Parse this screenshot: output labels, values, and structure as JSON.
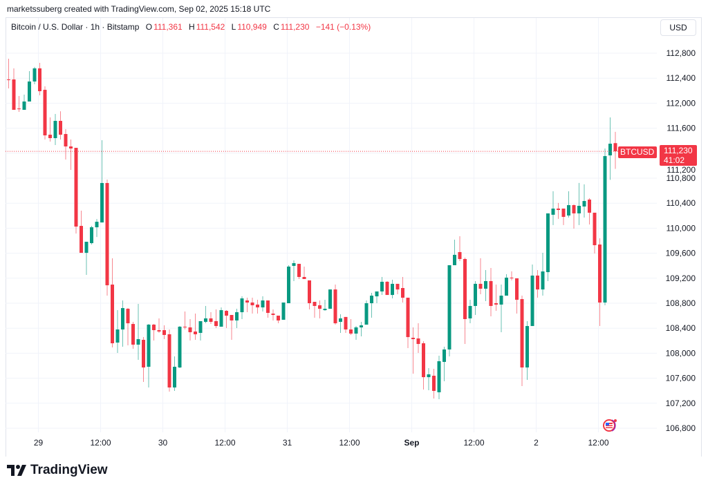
{
  "credit": "marketssuberg created with TradingView.com, Sep 02, 2025 15:18 UTC",
  "legend": {
    "symbol": "Bitcoin / U.S. Dollar · 1h · Bitstamp",
    "o_label": "O",
    "o": "111,361",
    "h_label": "H",
    "h": "111,542",
    "l_label": "L",
    "l": "110,949",
    "c_label": "C",
    "c": "111,230",
    "change": "−141 (−0.13%)"
  },
  "currency_button": "USD",
  "last_price": {
    "symbol_tag": "BTCUSD",
    "price": "111,230",
    "countdown": "41:02",
    "value": 111230
  },
  "colors": {
    "up": "#089981",
    "down": "#F23645",
    "grid": "#f0f3fa"
  },
  "icons": {
    "economic_event": "us-flag-event-icon",
    "logo": "tradingview-logo-icon"
  },
  "logo_text": "TradingView",
  "chart_data": {
    "type": "candlestick",
    "interval": "1h",
    "ylim": [
      106600,
      113000
    ],
    "y_ticks": [
      "112,800",
      "112,400",
      "112,000",
      "111,600",
      "111,200",
      "110,800",
      "110,400",
      "110,000",
      "109,600",
      "109,200",
      "108,800",
      "108,400",
      "108,000",
      "107,600",
      "107,200",
      "106,800"
    ],
    "y_tick_values": [
      112800,
      112400,
      112000,
      111600,
      111200,
      110800,
      110400,
      110000,
      109600,
      109200,
      108800,
      108400,
      108000,
      107600,
      107200,
      106800
    ],
    "x_ticks": [
      {
        "label": "29",
        "bold": false,
        "index": 6
      },
      {
        "label": "12:00",
        "bold": false,
        "index": 18
      },
      {
        "label": "30",
        "bold": false,
        "index": 30
      },
      {
        "label": "12:00",
        "bold": false,
        "index": 42
      },
      {
        "label": "31",
        "bold": false,
        "index": 54
      },
      {
        "label": "12:00",
        "bold": false,
        "index": 66
      },
      {
        "label": "Sep",
        "bold": true,
        "index": 78
      },
      {
        "label": "12:00",
        "bold": false,
        "index": 90
      },
      {
        "label": "2",
        "bold": false,
        "index": 102
      },
      {
        "label": "12:00",
        "bold": false,
        "index": 114
      }
    ],
    "ohlc": [
      [
        112380,
        112712,
        112236,
        112370
      ],
      [
        112380,
        112557,
        111894,
        111894
      ],
      [
        111915,
        112115,
        111861,
        111905
      ],
      [
        111894,
        112137,
        111894,
        112027
      ],
      [
        112027,
        112513,
        112027,
        112347
      ],
      [
        112347,
        112580,
        112303,
        112557
      ],
      [
        112557,
        112645,
        112126,
        112192
      ],
      [
        112214,
        112270,
        111419,
        111485
      ],
      [
        111496,
        111772,
        111386,
        111441
      ],
      [
        111441,
        111827,
        111331,
        111717
      ],
      [
        111717,
        111871,
        111419,
        111496
      ],
      [
        111507,
        111584,
        111099,
        111308
      ],
      [
        111308,
        111419,
        110933,
        111275
      ],
      [
        111286,
        111286,
        109915,
        110026
      ],
      [
        110037,
        110281,
        109606,
        109606
      ],
      [
        109606,
        109783,
        109253,
        109783
      ],
      [
        109761,
        110037,
        109739,
        110015
      ],
      [
        110015,
        110147,
        109860,
        110103
      ],
      [
        110092,
        111408,
        110092,
        110723
      ],
      [
        110723,
        110778,
        108921,
        109087
      ],
      [
        109098,
        109518,
        108093,
        108159
      ],
      [
        108170,
        108689,
        108005,
        108380
      ],
      [
        108380,
        108844,
        108104,
        108722
      ],
      [
        108711,
        108722,
        108126,
        108479
      ],
      [
        108468,
        108502,
        108071,
        108137
      ],
      [
        108137,
        108789,
        107894,
        108225
      ],
      [
        108214,
        108258,
        107540,
        107772
      ],
      [
        107783,
        108468,
        107452,
        108457
      ],
      [
        108457,
        108468,
        108203,
        108369
      ],
      [
        108369,
        108557,
        108325,
        108347
      ],
      [
        108369,
        108446,
        108225,
        108292
      ],
      [
        108303,
        108380,
        107386,
        107452
      ],
      [
        107452,
        107949,
        107397,
        107783
      ],
      [
        107772,
        108435,
        107761,
        108424
      ],
      [
        108424,
        108667,
        108380,
        108413
      ],
      [
        108413,
        108546,
        108203,
        108336
      ],
      [
        108347,
        108634,
        108214,
        108303
      ],
      [
        108325,
        108513,
        108203,
        108513
      ],
      [
        108502,
        108756,
        108480,
        108557
      ],
      [
        108557,
        108656,
        108469,
        108502
      ],
      [
        108513,
        108700,
        108402,
        108435
      ],
      [
        108424,
        108733,
        108424,
        108689
      ],
      [
        108678,
        108689,
        108402,
        108601
      ],
      [
        108612,
        108612,
        108214,
        108524
      ],
      [
        108524,
        108711,
        108402,
        108656
      ],
      [
        108656,
        108910,
        108546,
        108877
      ],
      [
        108844,
        108888,
        108656,
        108811
      ],
      [
        108811,
        108888,
        108634,
        108767
      ],
      [
        108778,
        108855,
        108634,
        108733
      ],
      [
        108733,
        108910,
        108667,
        108844
      ],
      [
        108844,
        108844,
        108568,
        108645
      ],
      [
        108634,
        108700,
        108524,
        108612
      ],
      [
        108601,
        108601,
        108480,
        108524
      ],
      [
        108535,
        108811,
        108535,
        108811
      ],
      [
        108800,
        109408,
        108800,
        109386
      ],
      [
        109397,
        109485,
        109154,
        109441
      ],
      [
        109430,
        109430,
        109187,
        109220
      ],
      [
        109220,
        109386,
        109187,
        109187
      ],
      [
        109165,
        109165,
        108700,
        108800
      ],
      [
        108822,
        108822,
        108568,
        108756
      ],
      [
        108767,
        108844,
        108557,
        108711
      ],
      [
        108689,
        108855,
        108678,
        108711
      ],
      [
        108711,
        109020,
        108711,
        109020
      ],
      [
        109020,
        109098,
        108457,
        108479
      ],
      [
        108502,
        108623,
        108325,
        108557
      ],
      [
        108580,
        108580,
        108325,
        108380
      ],
      [
        108380,
        108546,
        108292,
        108314
      ],
      [
        108314,
        108435,
        108215,
        108413
      ],
      [
        108413,
        108502,
        108270,
        108446
      ],
      [
        108457,
        108844,
        108457,
        108800
      ],
      [
        108800,
        108966,
        108568,
        108921
      ],
      [
        108910,
        108988,
        108800,
        108988
      ],
      [
        108988,
        109220,
        108932,
        109143
      ],
      [
        109143,
        109154,
        108932,
        108932
      ],
      [
        108932,
        109176,
        108877,
        109110
      ],
      [
        109110,
        109110,
        108943,
        109020
      ],
      [
        109043,
        109220,
        108811,
        108888
      ],
      [
        108888,
        108888,
        108082,
        108258
      ],
      [
        108247,
        108413,
        107673,
        108225
      ],
      [
        108236,
        108479,
        108005,
        108148
      ],
      [
        108159,
        108192,
        107419,
        107617
      ],
      [
        107617,
        107761,
        107408,
        107662
      ],
      [
        107640,
        107750,
        107275,
        107397
      ],
      [
        107375,
        107960,
        107264,
        107872
      ],
      [
        107861,
        108104,
        107552,
        108060
      ],
      [
        108060,
        109408,
        107949,
        109408
      ],
      [
        109408,
        109817,
        109408,
        109574
      ],
      [
        109618,
        109872,
        109474,
        109507
      ],
      [
        109507,
        109529,
        108148,
        108546
      ],
      [
        108557,
        108855,
        108479,
        108756
      ],
      [
        108756,
        109154,
        108612,
        109110
      ],
      [
        109110,
        109519,
        108943,
        109032
      ],
      [
        109032,
        109331,
        108833,
        109154
      ],
      [
        109154,
        109364,
        108590,
        108756
      ],
      [
        108800,
        109098,
        108678,
        108778
      ],
      [
        108778,
        109098,
        108336,
        108921
      ],
      [
        108921,
        109264,
        108921,
        109209
      ],
      [
        109209,
        109309,
        109165,
        109198
      ],
      [
        109198,
        109198,
        108634,
        108855
      ],
      [
        108866,
        108921,
        107474,
        107772
      ],
      [
        107772,
        108513,
        107573,
        108435
      ],
      [
        108435,
        109419,
        108435,
        109242
      ],
      [
        109242,
        109331,
        108888,
        109020
      ],
      [
        109020,
        109607,
        108921,
        109308
      ],
      [
        109297,
        110237,
        109154,
        110237
      ],
      [
        110215,
        110591,
        110050,
        110314
      ],
      [
        110314,
        110403,
        110149,
        110292
      ],
      [
        110314,
        110314,
        110050,
        110181
      ],
      [
        110203,
        110591,
        110170,
        110369
      ],
      [
        110369,
        110381,
        109994,
        110237
      ],
      [
        110237,
        110724,
        110050,
        110358
      ],
      [
        110347,
        110702,
        110170,
        110435
      ],
      [
        110458,
        110480,
        110059,
        110248
      ],
      [
        110248,
        110248,
        109596,
        109728
      ],
      [
        109739,
        109839,
        108435,
        108811
      ],
      [
        108811,
        111275,
        108767,
        111154
      ],
      [
        111165,
        111772,
        110774,
        111352
      ],
      [
        111361,
        111542,
        110949,
        111230
      ]
    ]
  }
}
